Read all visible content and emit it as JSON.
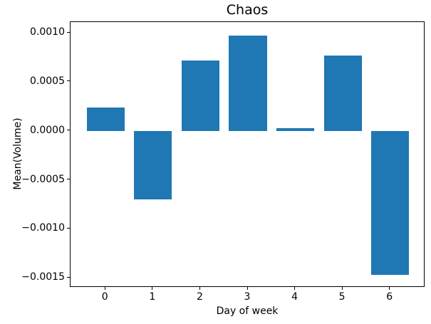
{
  "chart_data": {
    "type": "bar",
    "title": "Chaos",
    "xlabel": "Day of week",
    "ylabel": "Mean(Volume)",
    "categories": [
      "0",
      "1",
      "2",
      "3",
      "4",
      "5",
      "6"
    ],
    "x": [
      0,
      1,
      2,
      3,
      4,
      5,
      6
    ],
    "values": [
      0.00024,
      -0.0007,
      0.000715,
      0.00097,
      2.5e-05,
      0.00077,
      -0.00147
    ],
    "bar_color": "#1f77b4",
    "bar_width": 0.8,
    "xlim": [
      -0.74,
      6.74
    ],
    "ylim": [
      -0.0016,
      0.00111
    ],
    "grid": false,
    "legend": "none",
    "yticks": {
      "values": [
        0.001,
        0.0005,
        0.0,
        -0.0005,
        -0.001,
        -0.0015
      ],
      "labels": [
        "0.0010",
        "0.0005",
        "0.0000",
        "−0.0005",
        "−0.0010",
        "−0.0015"
      ]
    },
    "xticks": {
      "values": [
        0,
        1,
        2,
        3,
        4,
        5,
        6
      ],
      "labels": [
        "0",
        "1",
        "2",
        "3",
        "4",
        "5",
        "6"
      ]
    }
  }
}
